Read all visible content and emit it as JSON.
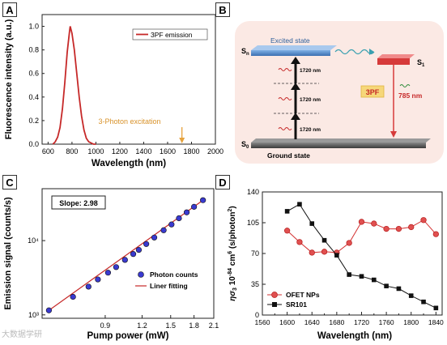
{
  "figure": {
    "panel_labels": [
      "A",
      "B",
      "C",
      "D"
    ],
    "watermark": "大数据学研"
  },
  "panelA": {
    "xlabel": "Wavelength (nm)",
    "ylabel": "Fluorescence intensity (a.u.)",
    "legend": "3PF emission",
    "annotation": "3-Photon excitation",
    "colors": {
      "line": "#d32f2f",
      "arrow": "#e6a23c"
    }
  },
  "panelB": {
    "excited_state": "Excited state",
    "ground_state": "Ground state",
    "sn": "Sn",
    "s1": "S1",
    "s0": "S0",
    "photon": "1720 nm",
    "process": "3PF",
    "emission": "785 nm",
    "colors": {
      "background": "#fbe9e4",
      "excited_bar": "#4a86c8",
      "s1_bar": "#d63a3a",
      "ground_bar": "#555555",
      "process_box": "#f6d77a"
    }
  },
  "panelC": {
    "xlabel": "Pump power (mW)",
    "ylabel": "Emission signal (counts/s)",
    "slope_label": "Slope: 2.98",
    "legend_points": "Photon counts",
    "legend_line": "Liner fitting"
  },
  "panelD": {
    "xlabel": "Wavelength (nm)",
    "ylabel": "ησ3 10-84 cm6 (s/photon2)",
    "legend": [
      "OFET NPs",
      "SR101"
    ]
  },
  "chart_data": [
    {
      "panel": "A",
      "type": "line",
      "xlim": [
        550,
        2000
      ],
      "ylim": [
        0,
        1.1
      ],
      "xticks": [
        600,
        800,
        1000,
        1200,
        1400,
        1600,
        1800,
        2000
      ],
      "yticks": [
        0.0,
        0.2,
        0.4,
        0.6,
        0.8,
        1.0
      ],
      "series": [
        {
          "name": "3PF emission",
          "x": [
            640,
            660,
            680,
            700,
            720,
            740,
            760,
            780,
            785,
            800,
            820,
            840,
            860,
            880,
            900,
            920,
            940,
            960,
            980,
            1000
          ],
          "y": [
            0.0,
            0.02,
            0.06,
            0.14,
            0.3,
            0.52,
            0.78,
            0.96,
            1.0,
            0.94,
            0.8,
            0.6,
            0.4,
            0.24,
            0.12,
            0.05,
            0.02,
            0.01,
            0.0,
            0.0
          ]
        }
      ],
      "annotation": {
        "text": "3-Photon excitation",
        "x": 1720
      }
    },
    {
      "panel": "C",
      "type": "scatter",
      "log_x": true,
      "log_y": true,
      "xlim": [
        0.55,
        2.1
      ],
      "ylim": [
        900,
        50000
      ],
      "xticks": [
        0.9,
        1.2,
        1.5,
        1.8,
        2.1
      ],
      "yticks": [
        1000,
        10000
      ],
      "ytick_labels": [
        "10³",
        "10⁴"
      ],
      "series": [
        {
          "name": "Photon counts",
          "x": [
            0.58,
            0.7,
            0.79,
            0.85,
            0.92,
            0.98,
            1.05,
            1.12,
            1.17,
            1.24,
            1.32,
            1.42,
            1.51,
            1.6,
            1.7,
            1.8,
            1.93
          ],
          "y": [
            1150,
            1750,
            2400,
            3000,
            3700,
            4400,
            5500,
            6600,
            7500,
            9000,
            11000,
            13800,
            16500,
            20000,
            24000,
            28500,
            35000
          ]
        }
      ],
      "fit": {
        "name": "Liner fitting",
        "slope": 2.98,
        "x": [
          0.58,
          1.93
        ],
        "y": [
          1150,
          35000
        ]
      }
    },
    {
      "panel": "D",
      "type": "line",
      "xlim": [
        1560,
        1850
      ],
      "ylim": [
        0,
        140
      ],
      "xticks": [
        1560,
        1580,
        1600,
        1620,
        1640,
        1660,
        1680,
        1700,
        1720,
        1740,
        1760,
        1780,
        1800,
        1820,
        1840
      ],
      "yticks": [
        0,
        35,
        70,
        105,
        140
      ],
      "series": [
        {
          "name": "OFET NPs",
          "x": [
            1600,
            1620,
            1640,
            1660,
            1680,
            1700,
            1720,
            1740,
            1760,
            1780,
            1800,
            1820,
            1840
          ],
          "y": [
            96,
            83,
            71,
            72,
            71,
            82,
            106,
            104,
            98,
            98,
            100,
            108,
            92
          ]
        },
        {
          "name": "SR101",
          "x": [
            1600,
            1620,
            1640,
            1660,
            1680,
            1700,
            1720,
            1740,
            1760,
            1780,
            1800,
            1820,
            1840
          ],
          "y": [
            118,
            126,
            104,
            85,
            68,
            46,
            44,
            40,
            33,
            30,
            22,
            15,
            8
          ]
        }
      ]
    }
  ]
}
